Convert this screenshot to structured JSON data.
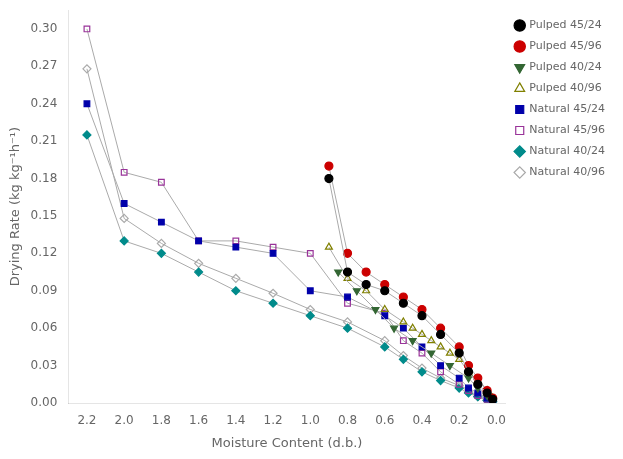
{
  "chart_data": {
    "type": "line",
    "x_label": "Moisture Content (d.b.)",
    "y_label": "Drying Rate (kg kg⁻¹h⁻¹)",
    "color": "#aaaaaa",
    "grid": false,
    "legend": "upper right",
    "xlim": [
      2.3,
      -0.05
    ],
    "ylim": [
      0.0,
      0.315
    ],
    "xticks": [
      2.2,
      {
        "value": 2,
        "label": "2.0"
      },
      1.8,
      1.6,
      1.4,
      1.2,
      {
        "value": 1,
        "label": "1.0"
      },
      0.8,
      0.6,
      0.4,
      0.2,
      {
        "value": 0,
        "label": "0.0"
      }
    ],
    "yticks": [
      {
        "value": 0,
        "label": "0.00"
      },
      0.03,
      0.06,
      0.09,
      0.12,
      0.15,
      0.18,
      0.21,
      0.24,
      0.27,
      {
        "value": 0.3,
        "label": "0.30"
      }
    ],
    "series": [
      {
        "name": "Pulped 45/24",
        "color": "#000000",
        "marker": "circle",
        "x": [
          0.9,
          0.8,
          0.7,
          0.6,
          0.5,
          0.4,
          0.3,
          0.2,
          0.15,
          0.1,
          0.05,
          0.02
        ],
        "values": [
          0.18,
          0.105,
          0.095,
          0.09,
          0.08,
          0.07,
          0.055,
          0.04,
          0.025,
          0.015,
          0.008,
          0.003
        ]
      },
      {
        "name": "Pulped 45/96",
        "color": "#cc0000",
        "marker": "circle",
        "x": [
          0.9,
          0.8,
          0.7,
          0.6,
          0.5,
          0.4,
          0.3,
          0.2,
          0.15,
          0.1,
          0.05,
          0.02
        ],
        "values": [
          0.19,
          0.12,
          0.105,
          0.095,
          0.085,
          0.075,
          0.06,
          0.045,
          0.03,
          0.02,
          0.01,
          0.004
        ]
      },
      {
        "name": "Pulped 40/24",
        "color": "#336633",
        "marker": "triangle-down",
        "x": [
          0.85,
          0.75,
          0.65,
          0.55,
          0.45,
          0.35,
          0.25,
          0.15,
          0.1,
          0.05,
          0.02
        ],
        "values": [
          0.105,
          0.09,
          0.075,
          0.06,
          0.05,
          0.04,
          0.03,
          0.02,
          0.012,
          0.006,
          0.002
        ]
      },
      {
        "name": "Pulped 40/96",
        "color": "#808000",
        "marker": "triangle-up-open",
        "x": [
          0.9,
          0.8,
          0.7,
          0.6,
          0.5,
          0.45,
          0.4,
          0.35,
          0.3,
          0.25,
          0.2,
          0.15,
          0.1,
          0.05,
          0.02
        ],
        "values": [
          0.125,
          0.1,
          0.09,
          0.075,
          0.065,
          0.06,
          0.055,
          0.05,
          0.045,
          0.04,
          0.035,
          0.025,
          0.018,
          0.01,
          0.004
        ]
      },
      {
        "name": "Natural 45/24",
        "color": "#0000aa",
        "marker": "square",
        "x": [
          2.2,
          2.0,
          1.8,
          1.6,
          1.4,
          1.2,
          1.0,
          0.8,
          0.6,
          0.5,
          0.4,
          0.3,
          0.2,
          0.15,
          0.1,
          0.05,
          0.02
        ],
        "values": [
          0.24,
          0.16,
          0.145,
          0.13,
          0.125,
          0.12,
          0.09,
          0.085,
          0.07,
          0.06,
          0.045,
          0.03,
          0.02,
          0.012,
          0.008,
          0.004,
          0.001
        ]
      },
      {
        "name": "Natural 45/96",
        "color": "#993399",
        "marker": "square-open",
        "x": [
          2.2,
          2.0,
          1.8,
          1.6,
          1.4,
          1.2,
          1.0,
          0.8,
          0.6,
          0.5,
          0.4,
          0.3,
          0.2,
          0.15,
          0.1,
          0.05,
          0.02
        ],
        "values": [
          0.3,
          0.185,
          0.177,
          0.13,
          0.13,
          0.125,
          0.12,
          0.08,
          0.072,
          0.05,
          0.04,
          0.025,
          0.015,
          0.01,
          0.006,
          0.003,
          0.001
        ]
      },
      {
        "name": "Natural 40/24",
        "color": "#008b8b",
        "marker": "diamond",
        "x": [
          2.2,
          2.0,
          1.8,
          1.6,
          1.4,
          1.2,
          1.0,
          0.8,
          0.6,
          0.5,
          0.4,
          0.3,
          0.2,
          0.15,
          0.1,
          0.05,
          0.02
        ],
        "values": [
          0.215,
          0.13,
          0.12,
          0.105,
          0.09,
          0.08,
          0.07,
          0.06,
          0.045,
          0.035,
          0.025,
          0.018,
          0.012,
          0.008,
          0.005,
          0.002,
          0.001
        ]
      },
      {
        "name": "Natural 40/96",
        "color": "#aaaaaa",
        "marker": "diamond-open",
        "x": [
          2.2,
          2.0,
          1.8,
          1.6,
          1.4,
          1.2,
          1.0,
          0.8,
          0.6,
          0.5,
          0.4,
          0.3,
          0.2,
          0.15,
          0.1,
          0.05,
          0.02
        ],
        "values": [
          0.268,
          0.148,
          0.128,
          0.112,
          0.1,
          0.088,
          0.075,
          0.065,
          0.05,
          0.038,
          0.028,
          0.02,
          0.014,
          0.009,
          0.005,
          0.002,
          0.001
        ]
      }
    ]
  }
}
